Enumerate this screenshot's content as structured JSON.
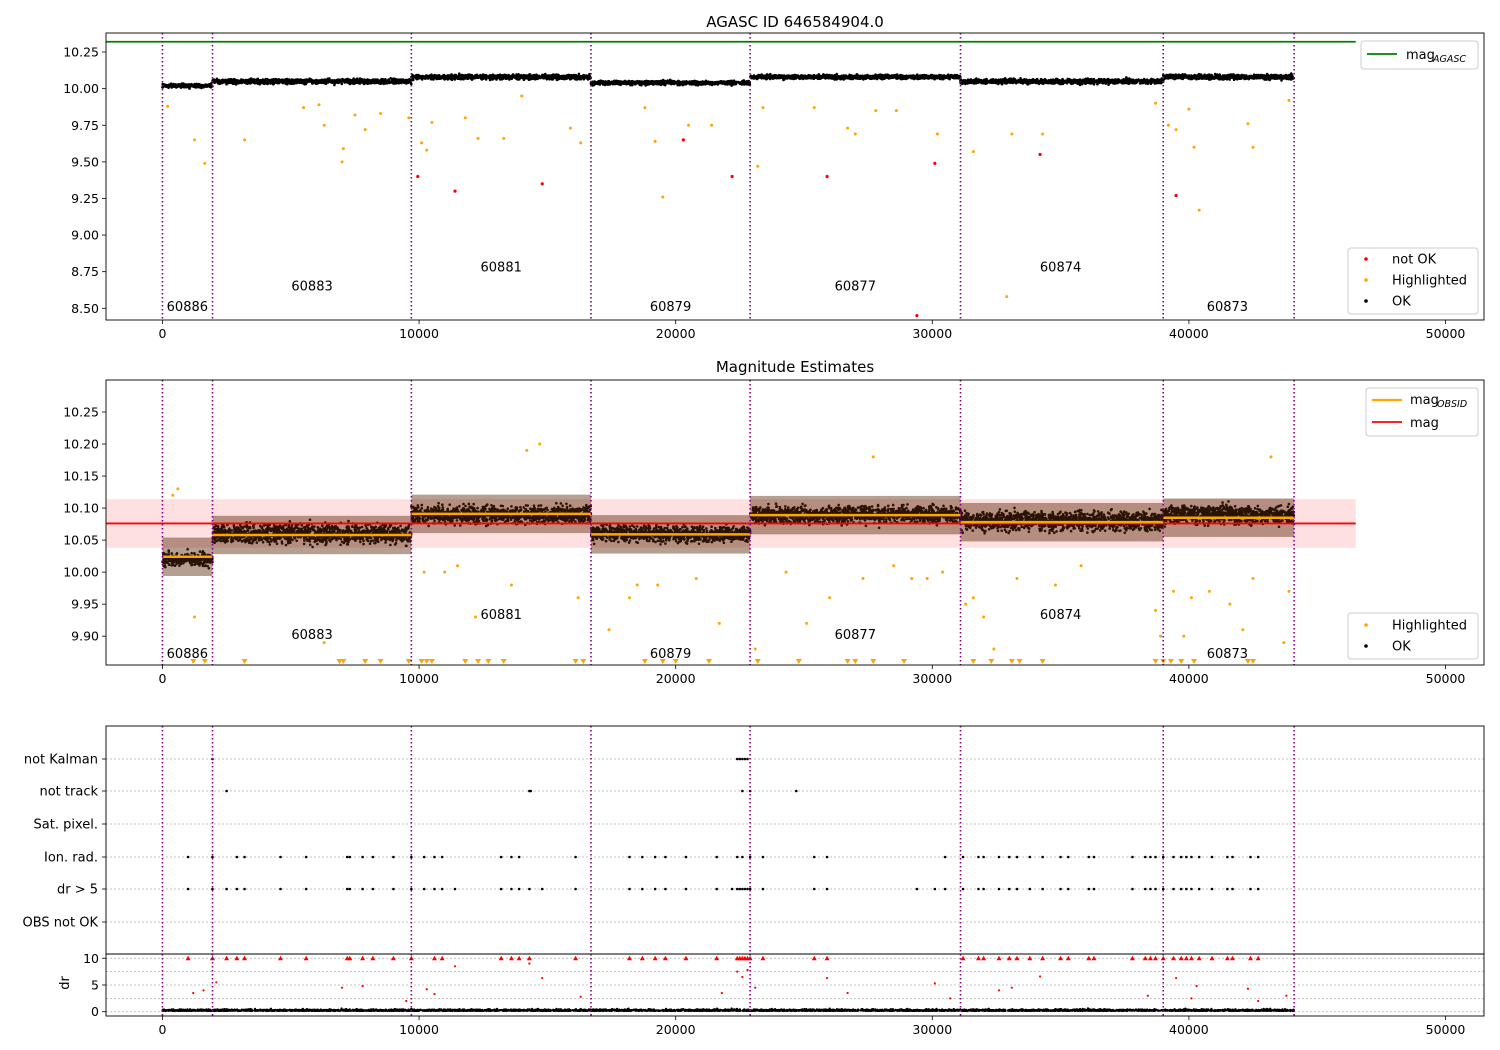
{
  "figure": {
    "title_top": "AGASC ID 646584904.0",
    "title_mid": "Magnitude Estimates"
  },
  "obsid_boundaries": [
    0,
    1950,
    9700,
    16700,
    22900,
    31100,
    39000,
    44100
  ],
  "chart_data": [
    {
      "type": "scatter",
      "title": "AGASC ID 646584904.0",
      "xlim": [
        -2200,
        51500
      ],
      "ylim": [
        8.42,
        10.38
      ],
      "x_ticks": [
        0,
        10000,
        20000,
        30000,
        40000,
        50000
      ],
      "x_tick_labels": [
        "0",
        "10000",
        "20000",
        "30000",
        "40000",
        "50000"
      ],
      "y_ticks": [
        8.5,
        8.75,
        9.0,
        9.25,
        9.5,
        9.75,
        10.0,
        10.25
      ],
      "y_tick_labels": [
        "8.50",
        "8.75",
        "9.00",
        "9.25",
        "9.50",
        "9.75",
        "10.00",
        "10.25"
      ],
      "mag_agasc": 10.32,
      "mag_agasc_range": [
        -2200,
        46500
      ],
      "obsid_labels": [
        {
          "text": "60886",
          "x": 970,
          "y": 8.51
        },
        {
          "text": "60883",
          "x": 5830,
          "y": 8.65
        },
        {
          "text": "60881",
          "x": 13200,
          "y": 8.78
        },
        {
          "text": "60879",
          "x": 19800,
          "y": 8.51
        },
        {
          "text": "60877",
          "x": 27000,
          "y": 8.65
        },
        {
          "text": "60874",
          "x": 35000,
          "y": 8.78
        },
        {
          "text": "60873",
          "x": 41500,
          "y": 8.51
        }
      ],
      "segments": [
        {
          "x0": 0,
          "x1": 1950,
          "center": 10.02,
          "spread": 0.05
        },
        {
          "x0": 1950,
          "x1": 9700,
          "center": 10.05,
          "spread": 0.06
        },
        {
          "x0": 9700,
          "x1": 16700,
          "center": 10.08,
          "spread": 0.06
        },
        {
          "x0": 16700,
          "x1": 22900,
          "center": 10.04,
          "spread": 0.05
        },
        {
          "x0": 22900,
          "x1": 31100,
          "center": 10.08,
          "spread": 0.05
        },
        {
          "x0": 31100,
          "x1": 39000,
          "center": 10.05,
          "spread": 0.06
        },
        {
          "x0": 39000,
          "x1": 44100,
          "center": 10.08,
          "spread": 0.06
        }
      ],
      "not_ok": [
        [
          9950,
          9.4
        ],
        [
          11400,
          9.3
        ],
        [
          14800,
          9.35
        ],
        [
          20300,
          9.65
        ],
        [
          22200,
          9.4
        ],
        [
          25900,
          9.4
        ],
        [
          29400,
          8.45
        ],
        [
          30100,
          9.49
        ],
        [
          34200,
          9.55
        ],
        [
          39500,
          9.27
        ]
      ],
      "highlighted": [
        [
          200,
          9.88
        ],
        [
          1250,
          9.65
        ],
        [
          1650,
          9.49
        ],
        [
          3200,
          9.65
        ],
        [
          5500,
          9.87
        ],
        [
          6100,
          9.89
        ],
        [
          6300,
          9.75
        ],
        [
          7000,
          9.5
        ],
        [
          7050,
          9.59
        ],
        [
          7500,
          9.82
        ],
        [
          7900,
          9.72
        ],
        [
          8500,
          9.83
        ],
        [
          9600,
          9.8
        ],
        [
          10100,
          9.63
        ],
        [
          10300,
          9.58
        ],
        [
          10500,
          9.77
        ],
        [
          11800,
          9.8
        ],
        [
          12300,
          9.66
        ],
        [
          13300,
          9.66
        ],
        [
          14000,
          9.95
        ],
        [
          15900,
          9.73
        ],
        [
          16300,
          9.63
        ],
        [
          18800,
          9.87
        ],
        [
          19200,
          9.64
        ],
        [
          19500,
          9.26
        ],
        [
          20500,
          9.75
        ],
        [
          21400,
          9.75
        ],
        [
          23200,
          9.47
        ],
        [
          23400,
          9.87
        ],
        [
          25400,
          9.87
        ],
        [
          26700,
          9.73
        ],
        [
          27000,
          9.69
        ],
        [
          27800,
          9.85
        ],
        [
          28600,
          9.85
        ],
        [
          30200,
          9.69
        ],
        [
          31600,
          9.57
        ],
        [
          32900,
          8.58
        ],
        [
          33100,
          9.69
        ],
        [
          34300,
          9.69
        ],
        [
          38700,
          9.9
        ],
        [
          39200,
          9.75
        ],
        [
          39500,
          9.72
        ],
        [
          40000,
          9.86
        ],
        [
          40200,
          9.6
        ],
        [
          40400,
          9.17
        ],
        [
          42300,
          9.76
        ],
        [
          42500,
          9.6
        ],
        [
          43900,
          9.92
        ]
      ],
      "legend": [
        {
          "label": "mag",
          "sub": "AGASC",
          "color": "#008000"
        },
        {
          "label": "not OK",
          "color": "#ff0000"
        },
        {
          "label": "Highlighted",
          "color": "#ffa500"
        },
        {
          "label": "OK",
          "color": "#000000"
        }
      ]
    },
    {
      "type": "scatter",
      "title": "Magnitude Estimates",
      "xlim": [
        -2200,
        51500
      ],
      "ylim": [
        9.855,
        10.3
      ],
      "x_ticks": [
        0,
        10000,
        20000,
        30000,
        40000,
        50000
      ],
      "x_tick_labels": [
        "0",
        "10000",
        "20000",
        "30000",
        "40000",
        "50000"
      ],
      "y_ticks": [
        9.9,
        9.95,
        10.0,
        10.05,
        10.1,
        10.15,
        10.2,
        10.25
      ],
      "y_tick_labels": [
        "9.90",
        "9.95",
        "10.00",
        "10.05",
        "10.10",
        "10.15",
        "10.20",
        "10.25"
      ],
      "mag": 10.076,
      "mag_band": [
        10.038,
        10.114
      ],
      "mag_range": [
        -2200,
        46500
      ],
      "mag_obsid": [
        {
          "x0": 0,
          "x1": 1950,
          "value": 10.024
        },
        {
          "x0": 1950,
          "x1": 9700,
          "value": 10.058
        },
        {
          "x0": 9700,
          "x1": 16700,
          "value": 10.091
        },
        {
          "x0": 16700,
          "x1": 22900,
          "value": 10.059
        },
        {
          "x0": 22900,
          "x1": 31100,
          "value": 10.089
        },
        {
          "x0": 31100,
          "x1": 39000,
          "value": 10.078
        },
        {
          "x0": 39000,
          "x1": 44100,
          "value": 10.085
        }
      ],
      "obsid_labels": [
        {
          "text": "60886",
          "x": 970,
          "y": 9.872
        },
        {
          "text": "60883",
          "x": 5830,
          "y": 9.902
        },
        {
          "text": "60881",
          "x": 13200,
          "y": 9.933
        },
        {
          "text": "60879",
          "x": 19800,
          "y": 9.872
        },
        {
          "text": "60877",
          "x": 27000,
          "y": 9.902
        },
        {
          "text": "60874",
          "x": 35000,
          "y": 9.933
        },
        {
          "text": "60873",
          "x": 41500,
          "y": 9.872
        }
      ],
      "segments": [
        {
          "x0": 0,
          "x1": 1950,
          "center": 10.02,
          "spread": 0.038
        },
        {
          "x0": 1950,
          "x1": 9700,
          "center": 10.06,
          "spread": 0.055
        },
        {
          "x0": 9700,
          "x1": 16700,
          "center": 10.09,
          "spread": 0.05
        },
        {
          "x0": 16700,
          "x1": 22900,
          "center": 10.06,
          "spread": 0.045
        },
        {
          "x0": 22900,
          "x1": 31100,
          "center": 10.09,
          "spread": 0.05
        },
        {
          "x0": 31100,
          "x1": 39000,
          "center": 10.08,
          "spread": 0.055
        },
        {
          "x0": 39000,
          "x1": 44100,
          "center": 10.09,
          "spread": 0.05
        }
      ],
      "highlighted": [
        [
          400,
          10.12
        ],
        [
          600,
          10.13
        ],
        [
          1250,
          9.93
        ],
        [
          6300,
          9.89
        ],
        [
          10200,
          10.0
        ],
        [
          11000,
          10.0
        ],
        [
          11500,
          10.01
        ],
        [
          12200,
          9.93
        ],
        [
          13600,
          9.98
        ],
        [
          14200,
          10.19
        ],
        [
          14700,
          10.2
        ],
        [
          16200,
          9.96
        ],
        [
          17400,
          9.91
        ],
        [
          18200,
          9.96
        ],
        [
          18500,
          9.98
        ],
        [
          19300,
          9.98
        ],
        [
          20800,
          9.99
        ],
        [
          21700,
          9.92
        ],
        [
          23100,
          9.88
        ],
        [
          24300,
          10.0
        ],
        [
          25100,
          9.92
        ],
        [
          26000,
          9.96
        ],
        [
          27300,
          9.99
        ],
        [
          27700,
          10.18
        ],
        [
          28500,
          10.01
        ],
        [
          29200,
          9.99
        ],
        [
          29800,
          9.99
        ],
        [
          30400,
          10.0
        ],
        [
          31300,
          9.95
        ],
        [
          31600,
          9.96
        ],
        [
          32000,
          9.93
        ],
        [
          32400,
          9.88
        ],
        [
          33300,
          9.99
        ],
        [
          34800,
          9.98
        ],
        [
          35800,
          10.01
        ],
        [
          38700,
          9.94
        ],
        [
          38900,
          9.9
        ],
        [
          39400,
          9.97
        ],
        [
          39800,
          9.9
        ],
        [
          40100,
          9.96
        ],
        [
          40800,
          9.97
        ],
        [
          41600,
          9.95
        ],
        [
          42100,
          9.91
        ],
        [
          42500,
          9.99
        ],
        [
          43200,
          10.18
        ],
        [
          43700,
          9.89
        ],
        [
          43900,
          9.97
        ]
      ],
      "below_range_x": [
        1200,
        1650,
        3200,
        6900,
        7050,
        7900,
        8500,
        9600,
        10100,
        10300,
        10500,
        11800,
        12300,
        12700,
        13300,
        16100,
        16400,
        18800,
        19500,
        20000,
        21300,
        23200,
        24800,
        26700,
        27000,
        27700,
        28900,
        31600,
        32300,
        33100,
        33400,
        34300,
        38700,
        39000,
        39300,
        39700,
        40200,
        42300,
        42500
      ],
      "legend": [
        {
          "label": "mag",
          "sub": "OBSID",
          "color": "#ffa500"
        },
        {
          "label": "mag",
          "color": "#ff0000"
        },
        {
          "label": "Highlighted",
          "color": "#ffa500"
        },
        {
          "label": "OK",
          "color": "#000000"
        }
      ]
    },
    {
      "type": "scatter",
      "title": "",
      "xlim": [
        -2200,
        51500
      ],
      "flag_categories": [
        "not Kalman",
        "not track",
        "Sat. pixel.",
        "Ion. rad.",
        "dr > 5",
        "OBS not OK"
      ],
      "flags": {
        "not Kalman": [
          1950,
          22400,
          22500,
          22600,
          22700,
          22800
        ],
        "not track": [
          2500,
          14300,
          14350,
          22600,
          22900,
          24700
        ],
        "Sat. pixel.": [],
        "Ion. rad.": [
          1000,
          1950,
          2900,
          3200,
          4600,
          5600,
          7200,
          7300,
          7800,
          8200,
          9000,
          9700,
          10200,
          10600,
          10900,
          13200,
          13600,
          13900,
          16100,
          18200,
          18700,
          19200,
          19600,
          20400,
          21600,
          22400,
          22600,
          22900,
          23400,
          25400,
          25900,
          30500,
          31200,
          31800,
          32000,
          32600,
          33000,
          33300,
          33800,
          34300,
          35000,
          35300,
          36100,
          36300,
          37800,
          38300,
          38500,
          38700,
          39000,
          39400,
          39700,
          39900,
          40100,
          40400,
          40900,
          41500,
          41700,
          42400,
          42700
        ],
        "dr > 5": [
          1000,
          1950,
          2500,
          2900,
          3200,
          4600,
          5600,
          7200,
          7300,
          7800,
          8200,
          9000,
          9700,
          10200,
          10600,
          10900,
          11400,
          13200,
          13600,
          13900,
          14300,
          14800,
          16100,
          18200,
          18700,
          19200,
          19600,
          20400,
          21600,
          22200,
          22400,
          22500,
          22600,
          22700,
          22800,
          22900,
          23400,
          25400,
          25900,
          29400,
          30100,
          30500,
          31200,
          31800,
          32000,
          32600,
          33000,
          33300,
          33800,
          34300,
          35000,
          35300,
          36100,
          36300,
          37800,
          38300,
          38500,
          38700,
          39000,
          39400,
          39700,
          39900,
          40100,
          40400,
          40900,
          41500,
          41700,
          42400,
          42700
        ],
        "OBS not OK": []
      },
      "dr_ylim": [
        -0.8,
        10.8
      ],
      "dr_y_ticks": [
        0,
        5,
        10
      ],
      "dr_y_tick_labels": [
        "0",
        "5",
        "10"
      ],
      "dr_ylabel": "dr",
      "dr_typical": 0.6,
      "dr_clip": 10,
      "dr_red_capped_x": [
        1000,
        1950,
        2500,
        2900,
        3200,
        4600,
        5600,
        7200,
        7300,
        7800,
        8200,
        9000,
        9700,
        10600,
        10900,
        13200,
        13600,
        13900,
        14300,
        16100,
        18200,
        18700,
        19200,
        19600,
        20400,
        21600,
        22400,
        22500,
        22600,
        22700,
        22800,
        22900,
        23400,
        25400,
        25900,
        31200,
        31800,
        32000,
        32600,
        33000,
        33300,
        33800,
        34300,
        35000,
        35300,
        36100,
        36300,
        37800,
        38300,
        38500,
        38700,
        39000,
        39400,
        39700,
        39900,
        40100,
        40400,
        40900,
        41500,
        41700,
        42400,
        42700
      ],
      "dr_red_points": [
        [
          1200,
          3.5
        ],
        [
          1600,
          4.0
        ],
        [
          2100,
          5.5
        ],
        [
          7000,
          4.5
        ],
        [
          7800,
          4.8
        ],
        [
          9500,
          2.0
        ],
        [
          10300,
          4.2
        ],
        [
          10600,
          3.3
        ],
        [
          11400,
          8.5
        ],
        [
          14300,
          9.0
        ],
        [
          14800,
          6.3
        ],
        [
          16300,
          2.8
        ],
        [
          21800,
          3.5
        ],
        [
          22400,
          7.5
        ],
        [
          22600,
          6.5
        ],
        [
          22800,
          7.8
        ],
        [
          23100,
          4.5
        ],
        [
          25900,
          6.3
        ],
        [
          26700,
          3.5
        ],
        [
          30100,
          5.3
        ],
        [
          30700,
          2.5
        ],
        [
          32600,
          4.0
        ],
        [
          33100,
          4.5
        ],
        [
          34200,
          6.6
        ],
        [
          38400,
          3.0
        ],
        [
          39500,
          6.3
        ],
        [
          40100,
          2.5
        ],
        [
          40300,
          4.8
        ],
        [
          42300,
          4.3
        ],
        [
          42700,
          2.0
        ],
        [
          43800,
          3.0
        ]
      ],
      "x_ticks": [
        0,
        10000,
        20000,
        30000,
        40000,
        50000
      ],
      "x_tick_labels": [
        "0",
        "10000",
        "20000",
        "30000",
        "40000",
        "50000"
      ]
    }
  ]
}
